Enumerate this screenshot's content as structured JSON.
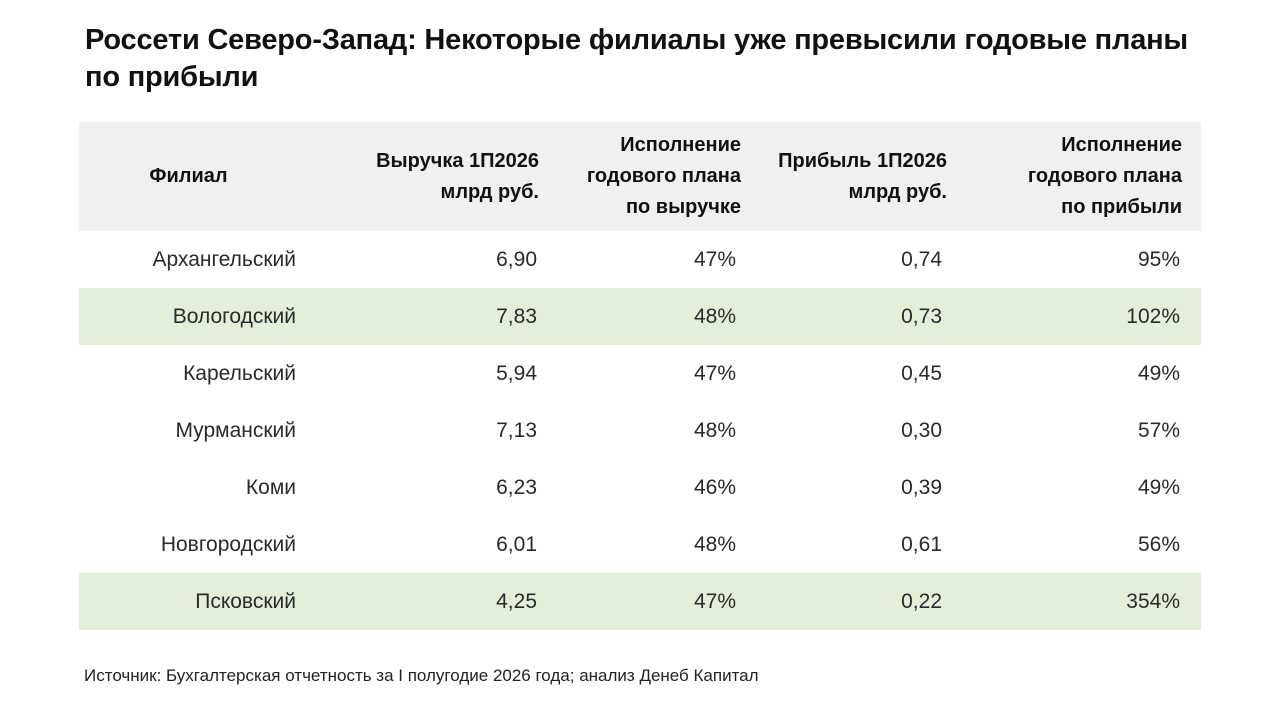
{
  "title": "Россети Северо-Запад: Некоторые филиалы уже превысили годовые планы по прибыли",
  "table": {
    "headers": {
      "branch": "Филиал",
      "revenue": "Выручка 1П2026\nмлрд руб.",
      "revenue_plan": "Исполнение\nгодового плана\nпо выручке",
      "profit": "Прибыль 1П2026\nмлрд руб.",
      "profit_plan": "Исполнение\nгодового плана\nпо прибыли"
    },
    "rows": [
      {
        "branch": "Архангельский",
        "revenue": "6,90",
        "revenue_plan": "47%",
        "profit": "0,74",
        "profit_plan": "95%",
        "highlight": false
      },
      {
        "branch": "Вологодский",
        "revenue": "7,83",
        "revenue_plan": "48%",
        "profit": "0,73",
        "profit_plan": "102%",
        "highlight": true
      },
      {
        "branch": "Карельский",
        "revenue": "5,94",
        "revenue_plan": "47%",
        "profit": "0,45",
        "profit_plan": "49%",
        "highlight": false
      },
      {
        "branch": "Мурманский",
        "revenue": "7,13",
        "revenue_plan": "48%",
        "profit": "0,30",
        "profit_plan": "57%",
        "highlight": false
      },
      {
        "branch": "Коми",
        "revenue": "6,23",
        "revenue_plan": "46%",
        "profit": "0,39",
        "profit_plan": "49%",
        "highlight": false
      },
      {
        "branch": "Новгородский",
        "revenue": "6,01",
        "revenue_plan": "48%",
        "profit": "0,61",
        "profit_plan": "56%",
        "highlight": false
      },
      {
        "branch": "Псковский",
        "revenue": "4,25",
        "revenue_plan": "47%",
        "profit": "0,22",
        "profit_plan": "354%",
        "highlight": true
      }
    ]
  },
  "source": "Источник: Бухгалтерская отчетность за I полугодие 2026 года; анализ Денеб Капитал",
  "colors": {
    "header_bg": "#f0f0f0",
    "highlight_bg": "#e3efd9"
  }
}
